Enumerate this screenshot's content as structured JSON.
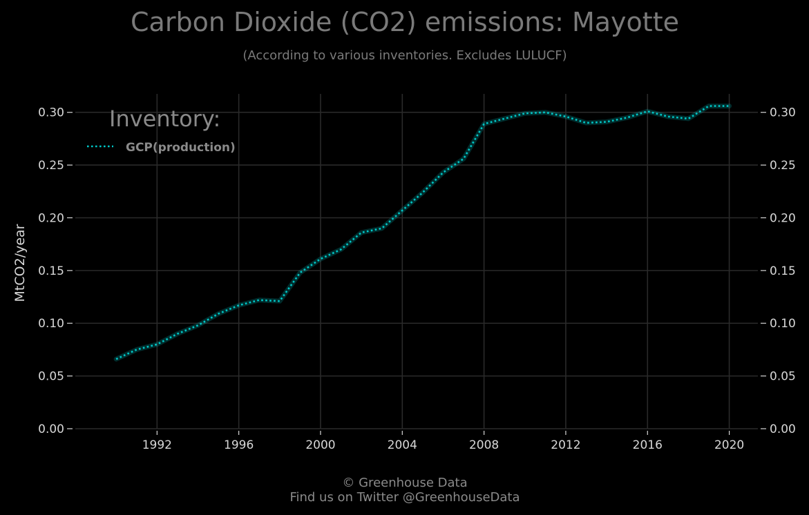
{
  "chart_data": {
    "type": "line",
    "title": "Carbon Dioxide (CO2) emissions: Mayotte",
    "subtitle": "(According to various inventories. Excludes LULUCF)",
    "ylabel": "MtCO2/year",
    "xlabel": "",
    "xlim": [
      1988,
      2021.4
    ],
    "ylim": [
      0,
      0.3175
    ],
    "x_ticks": [
      1992,
      1996,
      2000,
      2004,
      2008,
      2012,
      2016,
      2020
    ],
    "y_ticks": [
      "0.00",
      "0.05",
      "0.10",
      "0.15",
      "0.20",
      "0.25",
      "0.30"
    ],
    "y_tick_values": [
      0,
      0.05,
      0.1,
      0.15,
      0.2,
      0.25,
      0.3
    ],
    "grid": true,
    "legend_position": "top-left",
    "legend_title": "Inventory:",
    "series": [
      {
        "name": "GCP(production)",
        "color": "#00c8c8",
        "line_style": "dotted",
        "x": [
          1990,
          1991,
          1992,
          1993,
          1994,
          1995,
          1996,
          1997,
          1998,
          1999,
          2000,
          2001,
          2002,
          2003,
          2004,
          2005,
          2006,
          2007,
          2008,
          2009,
          2010,
          2011,
          2012,
          2013,
          2014,
          2015,
          2016,
          2017,
          2018,
          2019,
          2020
        ],
        "values": [
          0.066,
          0.075,
          0.08,
          0.09,
          0.098,
          0.109,
          0.117,
          0.122,
          0.121,
          0.148,
          0.161,
          0.17,
          0.186,
          0.19,
          0.207,
          0.224,
          0.243,
          0.256,
          0.289,
          0.294,
          0.299,
          0.3,
          0.296,
          0.29,
          0.291,
          0.295,
          0.301,
          0.296,
          0.294,
          0.306,
          0.306
        ]
      }
    ]
  },
  "footer": {
    "line1": "© Greenhouse Data",
    "line2": "Find us on Twitter @GreenhouseData"
  }
}
